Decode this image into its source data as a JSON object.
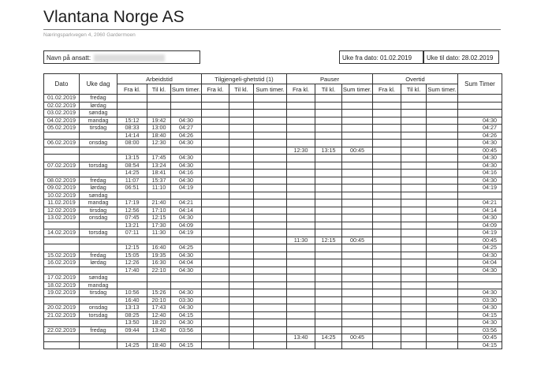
{
  "company": "Vlantana Norge AS",
  "address": "Næringsparkvegen 4, 2060 Gardermoen",
  "employee_label": "Navn på ansatt:",
  "week_from": "Uke fra dato: 01.02.2019",
  "week_to": "Uke til dato: 28.02.2019",
  "headers": {
    "dato": "Dato",
    "uke_dag": "Uke dag",
    "groups": [
      "Arbeidstid",
      "Tilgjengeli-ghetstid (1)",
      "Pauser",
      "Overtid"
    ],
    "sub": [
      "Fra kl.",
      "Til kl.",
      "Sum timer."
    ],
    "sum_timer": "Sum Timer"
  },
  "rows": [
    [
      "01.02.2019",
      "fredag",
      "",
      "",
      "",
      "",
      "",
      "",
      "",
      "",
      "",
      "",
      "",
      "",
      ""
    ],
    [
      "02.02.2019",
      "lørdag",
      "",
      "",
      "",
      "",
      "",
      "",
      "",
      "",
      "",
      "",
      "",
      "",
      ""
    ],
    [
      "03.02.2019",
      "søndag",
      "",
      "",
      "",
      "",
      "",
      "",
      "",
      "",
      "",
      "",
      "",
      "",
      ""
    ],
    [
      "04.02.2019",
      "mandag",
      "15:12",
      "19:42",
      "04:30",
      "",
      "",
      "",
      "",
      "",
      "",
      "",
      "",
      "",
      "04:30"
    ],
    [
      "05.02.2019",
      "tirsdag",
      "08:33",
      "13:00",
      "04:27",
      "",
      "",
      "",
      "",
      "",
      "",
      "",
      "",
      "",
      "04:27"
    ],
    [
      "",
      "",
      "14:14",
      "18:40",
      "04:26",
      "",
      "",
      "",
      "",
      "",
      "",
      "",
      "",
      "",
      "04:26"
    ],
    [
      "06.02.2019",
      "onsdag",
      "08:00",
      "12:30",
      "04:30",
      "",
      "",
      "",
      "",
      "",
      "",
      "",
      "",
      "",
      "04:30"
    ],
    [
      "",
      "",
      "",
      "",
      "",
      "",
      "",
      "",
      "12:30",
      "13:15",
      "00:45",
      "",
      "",
      "",
      "00:45"
    ],
    [
      "",
      "",
      "13:15",
      "17:45",
      "04:30",
      "",
      "",
      "",
      "",
      "",
      "",
      "",
      "",
      "",
      "04:30"
    ],
    [
      "07.02.2019",
      "torsdag",
      "08:54",
      "13:24",
      "04:30",
      "",
      "",
      "",
      "",
      "",
      "",
      "",
      "",
      "",
      "04:30"
    ],
    [
      "",
      "",
      "14:25",
      "18:41",
      "04:16",
      "",
      "",
      "",
      "",
      "",
      "",
      "",
      "",
      "",
      "04:16"
    ],
    [
      "08.02.2019",
      "fredag",
      "11:07",
      "15:37",
      "04:30",
      "",
      "",
      "",
      "",
      "",
      "",
      "",
      "",
      "",
      "04:30"
    ],
    [
      "09.02.2019",
      "lørdag",
      "06:51",
      "11:10",
      "04:19",
      "",
      "",
      "",
      "",
      "",
      "",
      "",
      "",
      "",
      "04:19"
    ],
    [
      "10.02.2019",
      "søndag",
      "",
      "",
      "",
      "",
      "",
      "",
      "",
      "",
      "",
      "",
      "",
      "",
      ""
    ],
    [
      "11.02.2019",
      "mandag",
      "17:19",
      "21:40",
      "04:21",
      "",
      "",
      "",
      "",
      "",
      "",
      "",
      "",
      "",
      "04:21"
    ],
    [
      "12.02.2019",
      "tirsdag",
      "12:56",
      "17:10",
      "04:14",
      "",
      "",
      "",
      "",
      "",
      "",
      "",
      "",
      "",
      "04:14"
    ],
    [
      "13.02.2019",
      "onsdag",
      "07:45",
      "12:15",
      "04:30",
      "",
      "",
      "",
      "",
      "",
      "",
      "",
      "",
      "",
      "04:30"
    ],
    [
      "",
      "",
      "13:21",
      "17:30",
      "04:09",
      "",
      "",
      "",
      "",
      "",
      "",
      "",
      "",
      "",
      "04:09"
    ],
    [
      "14.02.2019",
      "torsdag",
      "07:11",
      "11:30",
      "04:19",
      "",
      "",
      "",
      "",
      "",
      "",
      "",
      "",
      "",
      "04:19"
    ],
    [
      "",
      "",
      "",
      "",
      "",
      "",
      "",
      "",
      "11:30",
      "12:15",
      "00:45",
      "",
      "",
      "",
      "00:45"
    ],
    [
      "",
      "",
      "12:15",
      "16:40",
      "04:25",
      "",
      "",
      "",
      "",
      "",
      "",
      "",
      "",
      "",
      "04:25"
    ],
    [
      "15.02.2019",
      "fredag",
      "15:05",
      "19:35",
      "04:30",
      "",
      "",
      "",
      "",
      "",
      "",
      "",
      "",
      "",
      "04:30"
    ],
    [
      "16.02.2019",
      "lørdag",
      "12:26",
      "16:30",
      "04:04",
      "",
      "",
      "",
      "",
      "",
      "",
      "",
      "",
      "",
      "04:04"
    ],
    [
      "",
      "",
      "17:40",
      "22:10",
      "04:30",
      "",
      "",
      "",
      "",
      "",
      "",
      "",
      "",
      "",
      "04:30"
    ],
    [
      "17.02.2019",
      "søndag",
      "",
      "",
      "",
      "",
      "",
      "",
      "",
      "",
      "",
      "",
      "",
      "",
      ""
    ],
    [
      "18.02.2019",
      "mandag",
      "",
      "",
      "",
      "",
      "",
      "",
      "",
      "",
      "",
      "",
      "",
      "",
      ""
    ],
    [
      "19.02.2019",
      "tirsdag",
      "10:56",
      "15:26",
      "04:30",
      "",
      "",
      "",
      "",
      "",
      "",
      "",
      "",
      "",
      "04:30"
    ],
    [
      "",
      "",
      "16:40",
      "20:10",
      "03:30",
      "",
      "",
      "",
      "",
      "",
      "",
      "",
      "",
      "",
      "03:30"
    ],
    [
      "20.02.2019",
      "onsdag",
      "13:13",
      "17:43",
      "04:30",
      "",
      "",
      "",
      "",
      "",
      "",
      "",
      "",
      "",
      "04:30"
    ],
    [
      "21.02.2019",
      "torsdag",
      "08:25",
      "12:40",
      "04:15",
      "",
      "",
      "",
      "",
      "",
      "",
      "",
      "",
      "",
      "04:15"
    ],
    [
      "",
      "",
      "13:50",
      "18:20",
      "04:30",
      "",
      "",
      "",
      "",
      "",
      "",
      "",
      "",
      "",
      "04:30"
    ],
    [
      "22.02.2019",
      "fredag",
      "09:44",
      "13:40",
      "03:56",
      "",
      "",
      "",
      "",
      "",
      "",
      "",
      "",
      "",
      "03:56"
    ],
    [
      "",
      "",
      "",
      "",
      "",
      "",
      "",
      "",
      "13:40",
      "14:25",
      "00:45",
      "",
      "",
      "",
      "00:45"
    ],
    [
      "",
      "",
      "14:25",
      "18:40",
      "04:15",
      "",
      "",
      "",
      "",
      "",
      "",
      "",
      "",
      "",
      "04:15"
    ]
  ]
}
